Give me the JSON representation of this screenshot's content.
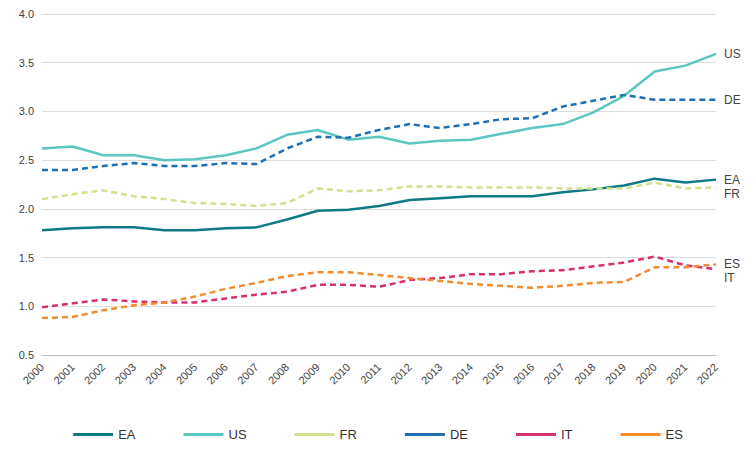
{
  "chart_data": {
    "type": "line",
    "categories": [
      "2000",
      "2001",
      "2002",
      "2003",
      "2004",
      "2005",
      "2006",
      "2007",
      "2008",
      "2009",
      "2010",
      "2011",
      "2012",
      "2013",
      "2014",
      "2015",
      "2016",
      "2017",
      "2018",
      "2019",
      "2020",
      "2021",
      "2022"
    ],
    "series": [
      {
        "name": "EA",
        "color": "#0f7a83",
        "line_style": "solid",
        "values": [
          1.78,
          1.8,
          1.81,
          1.81,
          1.78,
          1.78,
          1.8,
          1.81,
          1.89,
          1.98,
          1.99,
          2.03,
          2.09,
          2.11,
          2.13,
          2.13,
          2.13,
          2.17,
          2.2,
          2.24,
          2.31,
          2.27,
          2.3
        ]
      },
      {
        "name": "US",
        "color": "#5cc6c0",
        "line_style": "solid",
        "values": [
          2.62,
          2.64,
          2.55,
          2.55,
          2.5,
          2.51,
          2.55,
          2.62,
          2.76,
          2.81,
          2.71,
          2.74,
          2.67,
          2.7,
          2.71,
          2.77,
          2.83,
          2.87,
          2.99,
          3.16,
          3.41,
          3.47,
          3.59
        ]
      },
      {
        "name": "FR",
        "color": "#d5e08c",
        "line_style": "dashed",
        "values": [
          2.1,
          2.15,
          2.19,
          2.13,
          2.1,
          2.06,
          2.05,
          2.03,
          2.06,
          2.21,
          2.18,
          2.19,
          2.23,
          2.23,
          2.22,
          2.22,
          2.22,
          2.21,
          2.21,
          2.21,
          2.27,
          2.21,
          2.22
        ]
      },
      {
        "name": "DE",
        "color": "#1f6fb2",
        "line_style": "dashed",
        "values": [
          2.4,
          2.4,
          2.44,
          2.47,
          2.44,
          2.44,
          2.47,
          2.46,
          2.62,
          2.74,
          2.73,
          2.81,
          2.87,
          2.83,
          2.87,
          2.92,
          2.93,
          3.05,
          3.11,
          3.17,
          3.12,
          3.12,
          3.12
        ]
      },
      {
        "name": "IT",
        "color": "#d6306e",
        "line_style": "dashed",
        "values": [
          0.99,
          1.03,
          1.07,
          1.05,
          1.04,
          1.04,
          1.08,
          1.12,
          1.15,
          1.22,
          1.22,
          1.2,
          1.27,
          1.29,
          1.33,
          1.33,
          1.36,
          1.37,
          1.41,
          1.45,
          1.51,
          1.42,
          1.38
        ]
      },
      {
        "name": "ES",
        "color": "#f28c2e",
        "line_style": "dashed",
        "values": [
          0.88,
          0.89,
          0.96,
          1.01,
          1.04,
          1.1,
          1.18,
          1.24,
          1.31,
          1.35,
          1.35,
          1.32,
          1.29,
          1.26,
          1.23,
          1.21,
          1.19,
          1.21,
          1.24,
          1.25,
          1.4,
          1.4,
          1.43
        ]
      }
    ],
    "ylim": [
      0.5,
      4.0
    ],
    "yticks": [
      0.5,
      {
        "value": 1,
        "label": "1.0"
      },
      1.5,
      {
        "value": 2,
        "label": "2.0"
      },
      2.5,
      {
        "value": 3,
        "label": "3.0"
      },
      3.5,
      {
        "value": 4,
        "label": "4.0"
      }
    ],
    "grid": true,
    "legend": "bottom"
  }
}
